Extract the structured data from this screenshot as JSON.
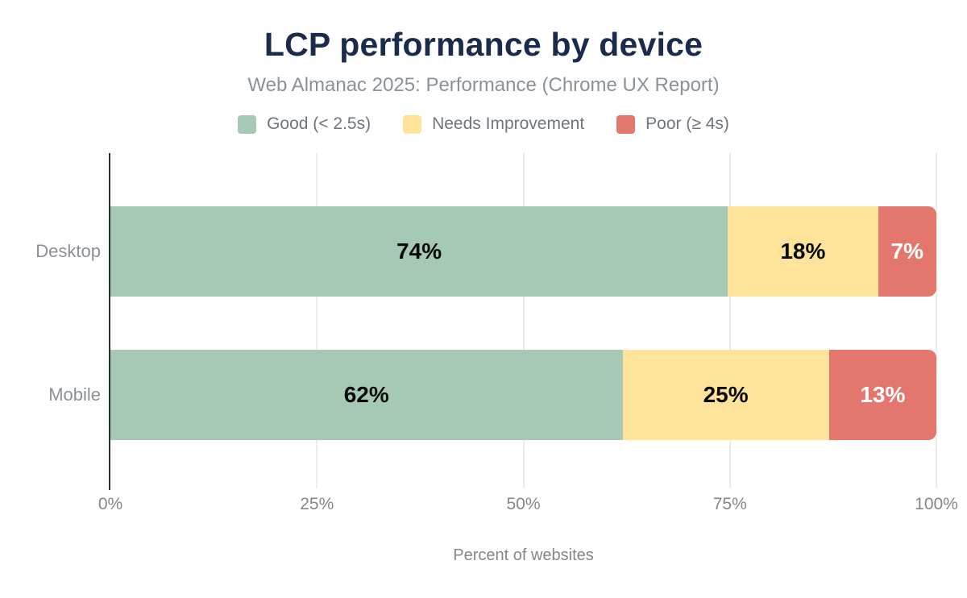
{
  "chart_data": {
    "type": "bar",
    "orientation": "horizontal",
    "stacked": true,
    "title": "LCP performance by device",
    "subtitle": "Web Almanac 2025: Performance (Chrome UX Report)",
    "xlabel": "Percent of websites",
    "categories": [
      "Desktop",
      "Mobile"
    ],
    "series": [
      {
        "name": "Good (< 2.5s)",
        "color": "#a6c9b6",
        "label_color": "#0a0a0a",
        "values": [
          74,
          62
        ]
      },
      {
        "name": "Needs Improvement",
        "color": "#fde49a",
        "label_color": "#0a0a0a",
        "values": [
          18,
          25
        ]
      },
      {
        "name": "Poor (≥ 4s)",
        "color": "#e3776d",
        "label_color": "#ffffff",
        "values": [
          7,
          13
        ]
      }
    ],
    "value_label_suffix": "%",
    "xlim": [
      0,
      100
    ],
    "ticks": [
      {
        "label": "0%",
        "value": 0
      },
      {
        "label": "25%",
        "value": 25
      },
      {
        "label": "50%",
        "value": 50
      },
      {
        "label": "75%",
        "value": 75
      },
      {
        "label": "100%",
        "value": 100
      }
    ],
    "grid": true,
    "legend_position": "top"
  }
}
